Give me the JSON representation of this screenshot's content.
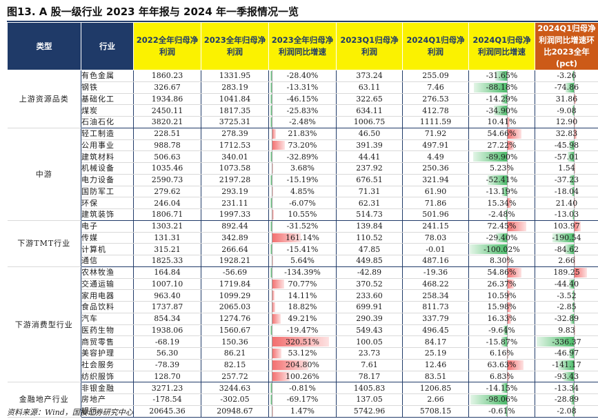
{
  "title": "图13. A 股一级行业 2023 年年报与 2024 年一季报情况一览",
  "source": "资料来源：Wind，国投证券研究中心",
  "colors": {
    "navy": "#1f3a68",
    "yellow": "#fbf200",
    "orange": "#cc5a18",
    "positive_bar": "#f26d6d",
    "negative_bar": "#4cbb6a"
  },
  "headers": [
    "类型",
    "行业",
    "2022全年归母净利润",
    "2023全年归母净利润",
    "2023全年归母净利润同比增速",
    "2023Q1归母净利润",
    "2024Q1归母净利润",
    "2024Q1归母净利润同比增速",
    "2024Q1归母净利润同比增速环比2023全年(pct)"
  ],
  "groups": [
    {
      "category": "上游资源品类",
      "rows": [
        {
          "industry": "有色金属",
          "p2022": "1860.23",
          "p2023": "1331.95",
          "g2023": "-28.40%",
          "q1_2023": "373.24",
          "q1_2024": "255.09",
          "g2024q1": "-31.65%",
          "diff": "-3.26"
        },
        {
          "industry": "钢铁",
          "p2022": "326.67",
          "p2023": "283.19",
          "g2023": "-13.31%",
          "q1_2023": "63.11",
          "q1_2024": "7.46",
          "g2024q1": "-88.18%",
          "diff": "-74.86"
        },
        {
          "industry": "基础化工",
          "p2022": "1934.86",
          "p2023": "1041.84",
          "g2023": "-46.15%",
          "q1_2023": "322.65",
          "q1_2024": "276.53",
          "g2024q1": "-14.29%",
          "diff": "31.86"
        },
        {
          "industry": "煤炭",
          "p2022": "2450.11",
          "p2023": "1817.35",
          "g2023": "-25.83%",
          "q1_2023": "634.11",
          "q1_2024": "412.78",
          "g2024q1": "-34.90%",
          "diff": "-9.08"
        },
        {
          "industry": "石油石化",
          "p2022": "3820.21",
          "p2023": "3725.31",
          "g2023": "-2.48%",
          "q1_2023": "1006.75",
          "q1_2024": "1111.59",
          "g2024q1": "10.41%",
          "diff": "12.90"
        }
      ]
    },
    {
      "category": "中游",
      "rows": [
        {
          "industry": "轻工制造",
          "p2022": "228.51",
          "p2023": "278.39",
          "g2023": "21.83%",
          "q1_2023": "46.50",
          "q1_2024": "71.92",
          "g2024q1": "54.66%",
          "diff": "32.83"
        },
        {
          "industry": "公用事业",
          "p2022": "988.78",
          "p2023": "1712.53",
          "g2023": "73.20%",
          "q1_2023": "391.39",
          "q1_2024": "497.91",
          "g2024q1": "27.22%",
          "diff": "-45.98"
        },
        {
          "industry": "建筑材料",
          "p2022": "506.63",
          "p2023": "340.01",
          "g2023": "-32.89%",
          "q1_2023": "44.41",
          "q1_2024": "4.49",
          "g2024q1": "-89.90%",
          "diff": "-57.01"
        },
        {
          "industry": "机械设备",
          "p2022": "1035.46",
          "p2023": "1073.58",
          "g2023": "3.68%",
          "q1_2023": "237.92",
          "q1_2024": "250.36",
          "g2024q1": "5.23%",
          "diff": "1.54"
        },
        {
          "industry": "电力设备",
          "p2022": "2590.73",
          "p2023": "2197.28",
          "g2023": "-15.19%",
          "q1_2023": "676.51",
          "q1_2024": "321.94",
          "g2024q1": "-52.41%",
          "diff": "-37.23"
        },
        {
          "industry": "国防军工",
          "p2022": "279.62",
          "p2023": "293.19",
          "g2023": "4.85%",
          "q1_2023": "71.31",
          "q1_2024": "61.90",
          "g2024q1": "-13.19%",
          "diff": "-18.04"
        },
        {
          "industry": "环保",
          "p2022": "246.04",
          "p2023": "231.11",
          "g2023": "-6.07%",
          "q1_2023": "62.31",
          "q1_2024": "71.86",
          "g2024q1": "15.34%",
          "diff": "21.40"
        },
        {
          "industry": "建筑装饰",
          "p2022": "1806.71",
          "p2023": "1997.33",
          "g2023": "10.55%",
          "q1_2023": "514.73",
          "q1_2024": "501.96",
          "g2024q1": "-2.48%",
          "diff": "-13.03"
        }
      ]
    },
    {
      "category": "下游TMT行业",
      "rows": [
        {
          "industry": "电子",
          "p2022": "1303.21",
          "p2023": "892.44",
          "g2023": "-31.52%",
          "q1_2023": "139.84",
          "q1_2024": "241.15",
          "g2024q1": "72.45%",
          "diff": "103.97"
        },
        {
          "industry": "传媒",
          "p2022": "131.31",
          "p2023": "342.89",
          "g2023": "161.14%",
          "q1_2023": "110.52",
          "q1_2024": "78.03",
          "g2024q1": "-29.40%",
          "diff": "-190.54"
        },
        {
          "industry": "计算机",
          "p2022": "315.21",
          "p2023": "266.64",
          "g2023": "-15.41%",
          "q1_2023": "47.85",
          "q1_2024": "-0.01",
          "g2024q1": "-100.02%",
          "diff": "-84.62"
        },
        {
          "industry": "通信",
          "p2022": "1825.33",
          "p2023": "1928.21",
          "g2023": "5.64%",
          "q1_2023": "449.85",
          "q1_2024": "487.16",
          "g2024q1": "8.30%",
          "diff": "2.66"
        }
      ]
    },
    {
      "category": "下游消费型行业",
      "rows": [
        {
          "industry": "农林牧渔",
          "p2022": "164.84",
          "p2023": "-56.69",
          "g2023": "-134.39%",
          "q1_2023": "-42.89",
          "q1_2024": "-19.36",
          "g2024q1": "54.86%",
          "diff": "189.25"
        },
        {
          "industry": "交通运输",
          "p2022": "1007.10",
          "p2023": "1719.84",
          "g2023": "70.77%",
          "q1_2023": "370.52",
          "q1_2024": "468.22",
          "g2024q1": "26.37%",
          "diff": "-44.40"
        },
        {
          "industry": "家用电器",
          "p2022": "963.40",
          "p2023": "1099.29",
          "g2023": "14.11%",
          "q1_2023": "233.60",
          "q1_2024": "258.34",
          "g2024q1": "10.59%",
          "diff": "-3.52"
        },
        {
          "industry": "食品饮料",
          "p2022": "1737.87",
          "p2023": "2065.03",
          "g2023": "18.82%",
          "q1_2023": "699.91",
          "q1_2024": "811.73",
          "g2024q1": "15.98%",
          "diff": "-2.85"
        },
        {
          "industry": "汽车",
          "p2022": "854.34",
          "p2023": "1274.76",
          "g2023": "49.21%",
          "q1_2023": "290.39",
          "q1_2024": "337.79",
          "g2024q1": "16.33%",
          "diff": "-32.89"
        },
        {
          "industry": "医药生物",
          "p2022": "1938.06",
          "p2023": "1560.67",
          "g2023": "-19.47%",
          "q1_2023": "549.43",
          "q1_2024": "496.45",
          "g2024q1": "-9.64%",
          "diff": "9.83"
        },
        {
          "industry": "商贸零售",
          "p2022": "-68.19",
          "p2023": "150.36",
          "g2023": "320.51%",
          "q1_2023": "100.05",
          "q1_2024": "84.17",
          "g2024q1": "-15.87%",
          "diff": "-336.37"
        },
        {
          "industry": "美容护理",
          "p2022": "56.30",
          "p2023": "86.21",
          "g2023": "53.12%",
          "q1_2023": "23.73",
          "q1_2024": "25.19",
          "g2024q1": "6.16%",
          "diff": "-46.97"
        },
        {
          "industry": "社会服务",
          "p2022": "-78.39",
          "p2023": "82.15",
          "g2023": "204.80%",
          "q1_2023": "7.61",
          "q1_2024": "12.46",
          "g2024q1": "63.63%",
          "diff": "-141.17"
        },
        {
          "industry": "纺织服饰",
          "p2022": "128.70",
          "p2023": "257.72",
          "g2023": "100.26%",
          "q1_2023": "78.17",
          "q1_2024": "83.51",
          "g2024q1": "6.83%",
          "diff": "-93.43"
        }
      ]
    },
    {
      "category": "金融地产行业",
      "rows": [
        {
          "industry": "非银金融",
          "p2022": "3271.23",
          "p2023": "3244.63",
          "g2023": "-0.81%",
          "q1_2023": "1405.83",
          "q1_2024": "1206.85",
          "g2024q1": "-14.15%",
          "diff": "-13.34"
        },
        {
          "industry": "房地产",
          "p2022": "-178.54",
          "p2023": "-302.05",
          "g2023": "-69.17%",
          "q1_2023": "137.05",
          "q1_2024": "2.66",
          "g2024q1": "-98.06%",
          "diff": "-28.89"
        },
        {
          "industry": "银行",
          "p2022": "20645.36",
          "p2023": "20948.67",
          "g2023": "1.47%",
          "q1_2023": "5742.96",
          "q1_2024": "5708.15",
          "g2024q1": "-0.61%",
          "diff": "-2.08"
        }
      ]
    }
  ]
}
